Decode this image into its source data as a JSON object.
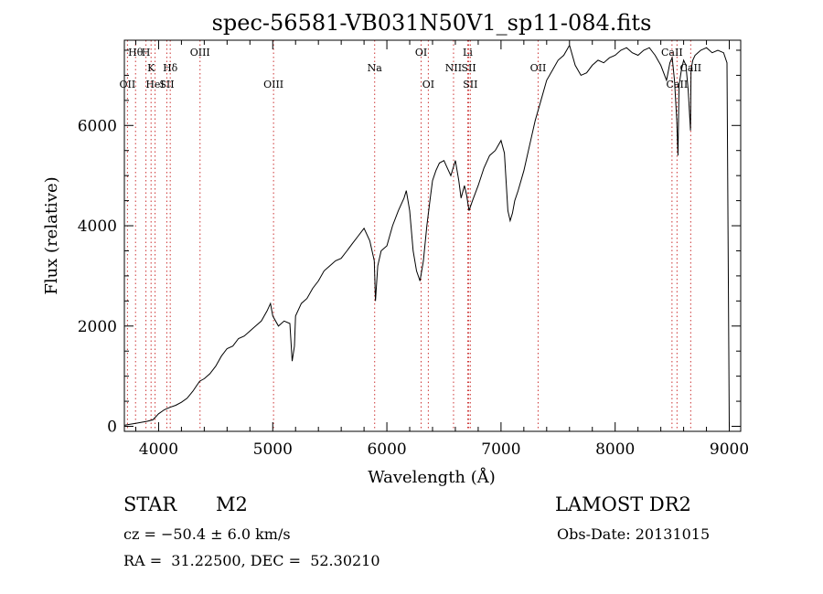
{
  "chart_data": {
    "type": "line",
    "title": "spec-56581-VB031N50V1_sp11-084.fits",
    "xlabel": "Wavelength (Å)",
    "ylabel": "Flux (relative)",
    "xlim": [
      3700,
      9100
    ],
    "ylim": [
      -100,
      7700
    ],
    "x_ticks": [
      4000,
      5000,
      6000,
      7000,
      8000,
      9000
    ],
    "x_tick_labels": [
      "4000",
      "5000",
      "6000",
      "7000",
      "8000",
      "9000"
    ],
    "y_ticks": [
      0,
      2000,
      4000,
      6000
    ],
    "y_tick_labels": [
      "0",
      "2000",
      "4000",
      "6000"
    ],
    "grid": false,
    "series": [
      {
        "x": [
          3700,
          3750,
          3800,
          3850,
          3900,
          3950,
          4000,
          4050,
          4100,
          4150,
          4200,
          4250,
          4300,
          4330,
          4360,
          4400,
          4450,
          4500,
          4550,
          4600,
          4650,
          4700,
          4750,
          4800,
          4850,
          4900,
          4950,
          4980,
          5000,
          5050,
          5100,
          5150,
          5170,
          5190,
          5200,
          5250,
          5300,
          5350,
          5400,
          5450,
          5500,
          5550,
          5600,
          5650,
          5700,
          5750,
          5800,
          5850,
          5890,
          5900,
          5920,
          5950,
          6000,
          6050,
          6100,
          6150,
          6170,
          6200,
          6230,
          6260,
          6290,
          6320,
          6350,
          6380,
          6400,
          6430,
          6460,
          6500,
          6530,
          6560,
          6600,
          6630,
          6650,
          6680,
          6700,
          6720,
          6750,
          6800,
          6850,
          6900,
          6950,
          7000,
          7030,
          7060,
          7080,
          7100,
          7120,
          7150,
          7200,
          7250,
          7300,
          7350,
          7400,
          7450,
          7500,
          7550,
          7600,
          7650,
          7700,
          7750,
          7800,
          7850,
          7900,
          7950,
          8000,
          8050,
          8100,
          8150,
          8200,
          8250,
          8300,
          8350,
          8400,
          8450,
          8480,
          8500,
          8520,
          8540,
          8550,
          8560,
          8580,
          8600,
          8620,
          8640,
          8660,
          8665,
          8680,
          8700,
          8750,
          8800,
          8850,
          8900,
          8950,
          8980,
          9000
        ],
        "y": [
          20,
          40,
          60,
          80,
          100,
          130,
          250,
          330,
          380,
          420,
          480,
          560,
          700,
          800,
          900,
          950,
          1050,
          1200,
          1400,
          1550,
          1600,
          1750,
          1800,
          1900,
          2000,
          2100,
          2300,
          2450,
          2200,
          2000,
          2100,
          2050,
          1300,
          1600,
          2200,
          2450,
          2550,
          2750,
          2900,
          3100,
          3200,
          3300,
          3350,
          3500,
          3650,
          3800,
          3950,
          3700,
          3300,
          2500,
          3200,
          3500,
          3600,
          4000,
          4300,
          4550,
          4700,
          4300,
          3500,
          3100,
          2900,
          3300,
          4000,
          4550,
          4900,
          5100,
          5250,
          5300,
          5150,
          5000,
          5300,
          4900,
          4550,
          4800,
          4600,
          4300,
          4500,
          4800,
          5150,
          5400,
          5500,
          5700,
          5450,
          4300,
          4100,
          4250,
          4500,
          4700,
          5100,
          5600,
          6100,
          6500,
          6900,
          7100,
          7300,
          7400,
          7600,
          7200,
          7000,
          7050,
          7200,
          7300,
          7250,
          7350,
          7400,
          7500,
          7550,
          7450,
          7400,
          7500,
          7550,
          7400,
          7200,
          6900,
          7250,
          7350,
          6900,
          6100,
          5400,
          6800,
          7100,
          7300,
          7200,
          6700,
          5900,
          7100,
          7300,
          7400,
          7500,
          7550,
          7450,
          7500,
          7450,
          7250,
          -20
        ]
      }
    ],
    "line_labels": [
      {
        "text": "Hθ",
        "x": 3798,
        "row": 1
      },
      {
        "text": "OII",
        "x": 3727,
        "row": 3
      },
      {
        "text": "H",
        "x": 3889,
        "row": 1
      },
      {
        "text": "K",
        "x": 3934,
        "row": 2
      },
      {
        "text": "HeI",
        "x": 3969,
        "row": 3
      },
      {
        "text": "Hδ",
        "x": 4102,
        "row": 2
      },
      {
        "text": "SII",
        "x": 4072,
        "row": 3
      },
      {
        "text": "OIII",
        "x": 4363,
        "row": 1
      },
      {
        "text": "OIII",
        "x": 5007,
        "row": 3
      },
      {
        "text": "Na",
        "x": 5893,
        "row": 2
      },
      {
        "text": "OI",
        "x": 6300,
        "row": 1
      },
      {
        "text": "OI",
        "x": 6363,
        "row": 3
      },
      {
        "text": "Li",
        "x": 6708,
        "row": 1
      },
      {
        "text": "NII",
        "x": 6584,
        "row": 2
      },
      {
        "text": "SII",
        "x": 6717,
        "row": 2
      },
      {
        "text": "SII",
        "x": 6731,
        "row": 3
      },
      {
        "text": "OII",
        "x": 7325,
        "row": 2
      },
      {
        "text": "CaII",
        "x": 8498,
        "row": 1
      },
      {
        "text": "CaII",
        "x": 8542,
        "row": 3
      },
      {
        "text": "CaII",
        "x": 8662,
        "row": 2
      }
    ]
  },
  "info": {
    "class_label": "STAR",
    "subclass": "M2",
    "survey": "LAMOST DR2",
    "cz": "cz = −50.4 ± 6.0 km/s",
    "obs_date": "Obs-Date: 20131015",
    "coords": "RA =  31.22500, DEC =  52.30210"
  },
  "colors": {
    "line": "#000000",
    "marker_lines": "#cc3333",
    "background": "#ffffff"
  }
}
